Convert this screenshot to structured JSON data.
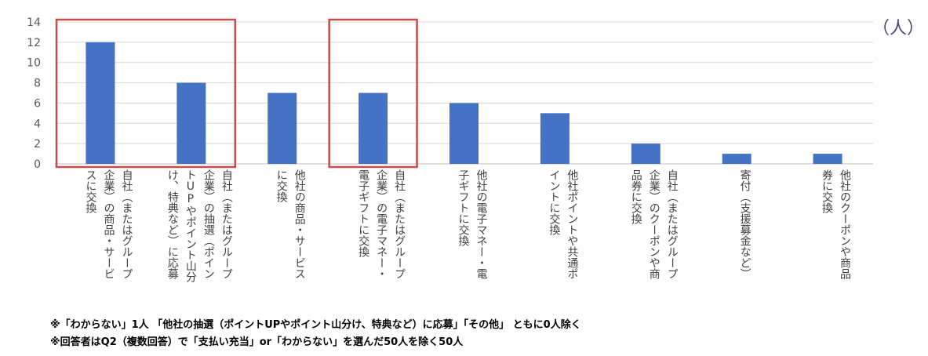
{
  "chart_data": {
    "type": "bar",
    "categories": [
      "自社（またはグループ企業）の商品・サービスに交換",
      "自社（またはグループ企業）の抽選（ポイントUPやポイント山分け、特典など）に応募",
      "他社の商品・サービスに交換",
      "自社（またはグループ企業）の電子マネー・電子ギフトに交換",
      "他社の電子マネー・電子ギフトに交換",
      "他社ポイントや共通ポイントに交換",
      "自社（またはグループ企業）のクーポンや商品券に交換",
      "寄付（支援募金など）",
      "他社のクーポンや商品券に交換"
    ],
    "category_lines": [
      [
        "自社（またはグループ",
        "企業）の商品・サービ",
        "スに交換"
      ],
      [
        "自社（またはグループ",
        "企業）の抽選（ポイン",
        "トUPやポイント山分",
        "け、特典など）に応募"
      ],
      [
        "他社の商品・サービス",
        "に交換"
      ],
      [
        "自社（またはグループ",
        "企業）の電子マネー・",
        "電子ギフトに交換"
      ],
      [
        "他社の電子マネー・電",
        "子ギフトに交換"
      ],
      [
        "他社ポイントや共通ポ",
        "イントに交換"
      ],
      [
        "自社（またはグループ",
        "企業）のクーポンや商",
        "品券に交換"
      ],
      [
        "寄付（支援募金など）"
      ],
      [
        "他社のクーポンや商品",
        "券に交換"
      ]
    ],
    "values": [
      12,
      8,
      7,
      7,
      6,
      5,
      2,
      1,
      1
    ],
    "ylim": [
      0,
      14
    ],
    "yticks": [
      "0",
      "2",
      "4",
      "6",
      "8",
      "10",
      "12",
      "14"
    ],
    "ylabel": "（人）",
    "grid": true,
    "bar_color": "#4472C4",
    "highlight_color": "#C0504D",
    "highlight_groups": [
      [
        0,
        1
      ],
      [
        3,
        3
      ]
    ]
  },
  "notes": [
    "※「わからない」1人 「他社の抽選（ポイントUPやポイント山分け、特典など）に応募」「その他」 ともに0人除く",
    "※回答者はQ2（複数回答）で「支払い充当」or「わからない」を選んだ50人を除く50人"
  ]
}
